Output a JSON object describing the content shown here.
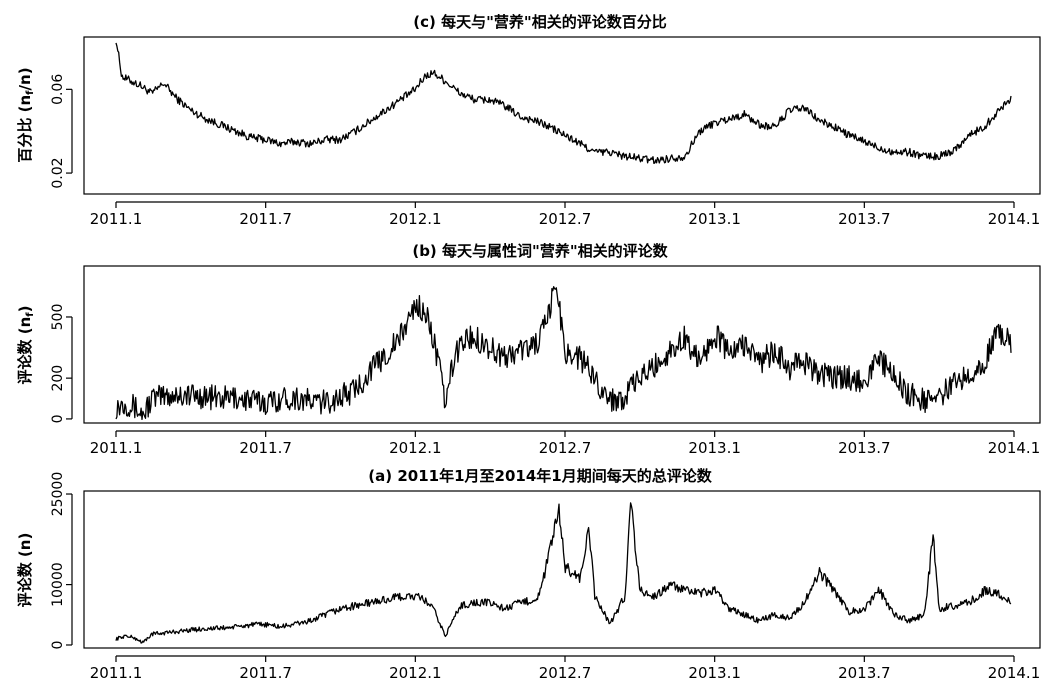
{
  "figure": {
    "x_tick_labels": [
      "2011.1",
      "2011.7",
      "2012.1",
      "2012.7",
      "2013.1",
      "2013.7",
      "2014.1"
    ]
  },
  "chart_data": [
    {
      "id": "c",
      "type": "line",
      "title": "(c) 每天与\"营养\"相关的评论数百分比",
      "ylabel": "百分比 (n_f/n)",
      "ylabel_main": "百分比 (n",
      "ylabel_sub": "f",
      "ylabel_tail": "/n)",
      "ylim": [
        0.01,
        0.085
      ],
      "yticks": [
        0.02,
        0.06
      ],
      "ytick_labels": [
        "0.02",
        "0.06"
      ],
      "x_range": [
        2011.0,
        2014.0
      ],
      "xticks": [
        2011.0,
        2011.5,
        2012.0,
        2012.5,
        2013.0,
        2013.5,
        2014.0
      ],
      "series": [
        {
          "x": [
            2011.0,
            2011.02,
            2011.05,
            2011.08,
            2011.12,
            2011.16,
            2011.2,
            2011.25,
            2011.3,
            2011.35,
            2011.4,
            2011.45,
            2011.5,
            2011.55,
            2011.6,
            2011.65,
            2011.7,
            2011.75,
            2011.8,
            2011.85,
            2011.9,
            2011.95,
            2012.0,
            2012.03,
            2012.06,
            2012.1,
            2012.15,
            2012.2,
            2012.25,
            2012.3,
            2012.35,
            2012.4,
            2012.45,
            2012.5,
            2012.55,
            2012.6,
            2012.65,
            2012.7,
            2012.75,
            2012.8,
            2012.85,
            2012.9,
            2012.95,
            2013.0,
            2013.05,
            2013.1,
            2013.15,
            2013.2,
            2013.25,
            2013.3,
            2013.35,
            2013.4,
            2013.45,
            2013.5,
            2013.55,
            2013.6,
            2013.65,
            2013.7,
            2013.75,
            2013.8,
            2013.85,
            2013.9,
            2013.95,
            2013.99
          ],
          "y": [
            0.084,
            0.066,
            0.064,
            0.062,
            0.058,
            0.063,
            0.056,
            0.05,
            0.046,
            0.043,
            0.04,
            0.037,
            0.036,
            0.034,
            0.035,
            0.034,
            0.036,
            0.036,
            0.04,
            0.045,
            0.05,
            0.055,
            0.06,
            0.066,
            0.068,
            0.064,
            0.058,
            0.055,
            0.055,
            0.052,
            0.047,
            0.045,
            0.042,
            0.038,
            0.034,
            0.03,
            0.03,
            0.028,
            0.027,
            0.026,
            0.027,
            0.028,
            0.04,
            0.044,
            0.046,
            0.048,
            0.043,
            0.042,
            0.05,
            0.051,
            0.045,
            0.042,
            0.038,
            0.035,
            0.032,
            0.03,
            0.03,
            0.028,
            0.028,
            0.031,
            0.038,
            0.042,
            0.05,
            0.056
          ]
        }
      ]
    },
    {
      "id": "b",
      "type": "line",
      "title": "(b) 每天与属性词\"营养\"相关的评论数",
      "ylabel": "评论数 (n_f)",
      "ylabel_main": "评论数 (n",
      "ylabel_sub": "f",
      "ylabel_tail": ")",
      "ylim": [
        -20,
        750
      ],
      "yticks": [
        0,
        200,
        500
      ],
      "ytick_labels": [
        "0",
        "200",
        "500"
      ],
      "x_range": [
        2011.0,
        2014.0
      ],
      "xticks": [
        2011.0,
        2011.5,
        2012.0,
        2012.5,
        2013.0,
        2013.5,
        2014.0
      ],
      "series": [
        {
          "x": [
            2011.0,
            2011.03,
            2011.06,
            2011.09,
            2011.12,
            2011.16,
            2011.2,
            2011.25,
            2011.3,
            2011.35,
            2011.4,
            2011.45,
            2011.5,
            2011.55,
            2011.6,
            2011.65,
            2011.7,
            2011.75,
            2011.8,
            2011.85,
            2011.9,
            2011.95,
            2012.0,
            2012.03,
            2012.06,
            2012.08,
            2012.1,
            2012.13,
            2012.16,
            2012.2,
            2012.25,
            2012.3,
            2012.35,
            2012.4,
            2012.44,
            2012.47,
            2012.5,
            2012.55,
            2012.6,
            2012.65,
            2012.7,
            2012.75,
            2012.8,
            2012.85,
            2012.9,
            2012.95,
            2013.0,
            2013.05,
            2013.1,
            2013.15,
            2013.2,
            2013.25,
            2013.3,
            2013.35,
            2013.4,
            2013.45,
            2013.5,
            2013.55,
            2013.6,
            2013.65,
            2013.7,
            2013.75,
            2013.8,
            2013.85,
            2013.9,
            2013.95,
            2013.99
          ],
          "y": [
            60,
            80,
            60,
            20,
            100,
            110,
            120,
            115,
            110,
            100,
            105,
            90,
            80,
            100,
            105,
            85,
            80,
            110,
            140,
            240,
            310,
            400,
            560,
            530,
            400,
            250,
            70,
            300,
            390,
            400,
            350,
            300,
            340,
            360,
            470,
            680,
            330,
            300,
            200,
            90,
            110,
            200,
            260,
            330,
            400,
            280,
            420,
            320,
            370,
            280,
            330,
            250,
            280,
            220,
            200,
            200,
            190,
            300,
            200,
            120,
            90,
            110,
            170,
            230,
            280,
            430,
            380
          ]
        }
      ]
    },
    {
      "id": "a",
      "type": "line",
      "title": "(a) 2011年1月至2014年1月期间每天的总评论数",
      "ylabel": "评论数 (n)",
      "ylabel_main": "评论数 (n)",
      "ylabel_sub": "",
      "ylabel_tail": "",
      "ylim": [
        -500,
        25500
      ],
      "yticks": [
        0,
        10000,
        25000
      ],
      "ytick_labels": [
        "0",
        "10000",
        "25000"
      ],
      "x_range": [
        2011.0,
        2014.0
      ],
      "xticks": [
        2011.0,
        2011.5,
        2012.0,
        2012.5,
        2013.0,
        2013.5,
        2014.0
      ],
      "series": [
        {
          "x": [
            2011.0,
            2011.03,
            2011.06,
            2011.09,
            2011.12,
            2011.16,
            2011.2,
            2011.25,
            2011.3,
            2011.35,
            2011.4,
            2011.45,
            2011.5,
            2011.55,
            2011.6,
            2011.65,
            2011.7,
            2011.75,
            2011.8,
            2011.85,
            2011.9,
            2011.95,
            2012.0,
            2012.03,
            2012.06,
            2012.1,
            2012.15,
            2012.2,
            2012.25,
            2012.3,
            2012.35,
            2012.4,
            2012.42,
            2012.45,
            2012.48,
            2012.5,
            2012.55,
            2012.58,
            2012.6,
            2012.65,
            2012.7,
            2012.72,
            2012.75,
            2012.8,
            2012.85,
            2012.9,
            2012.95,
            2013.0,
            2013.05,
            2013.1,
            2013.15,
            2013.2,
            2013.25,
            2013.3,
            2013.35,
            2013.4,
            2013.45,
            2013.5,
            2013.55,
            2013.6,
            2013.65,
            2013.7,
            2013.73,
            2013.75,
            2013.8,
            2013.85,
            2013.9,
            2013.95,
            2013.99
          ],
          "y": [
            1000,
            1500,
            1200,
            400,
            1800,
            2000,
            2200,
            2500,
            2700,
            2800,
            3000,
            3300,
            3400,
            3000,
            3500,
            4000,
            5000,
            6000,
            6500,
            7000,
            7500,
            8000,
            8000,
            7500,
            6000,
            1500,
            6500,
            7000,
            7000,
            6000,
            7000,
            7500,
            9000,
            16000,
            22000,
            13000,
            11000,
            19000,
            8000,
            3500,
            8000,
            24000,
            9000,
            8000,
            10000,
            9000,
            8500,
            9000,
            6000,
            5000,
            4000,
            5000,
            4500,
            7000,
            12000,
            9000,
            5500,
            6000,
            9000,
            5000,
            4000,
            5000,
            18000,
            6000,
            6500,
            7000,
            9000,
            8500,
            7000
          ]
        }
      ]
    }
  ]
}
